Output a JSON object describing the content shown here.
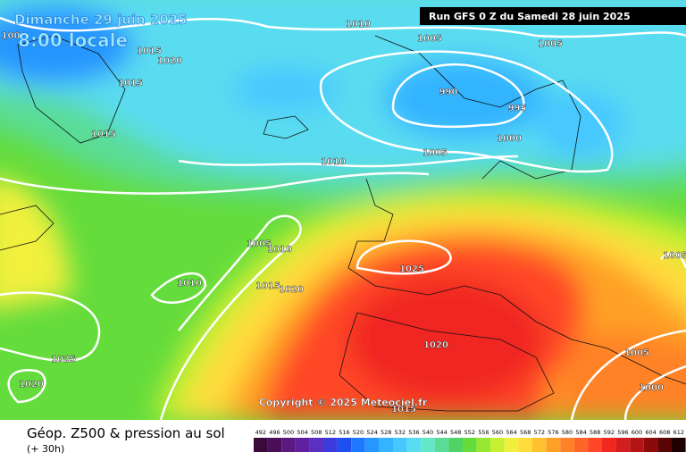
{
  "header": {
    "title": "Dimanche 29 juin 2025",
    "subtitle": "8:00 locale",
    "run": "Run GFS 0 Z du Samedi 28 juin 2025"
  },
  "copyright": "Copyright © 2025 Meteociel.fr",
  "isobars": {
    "labels": [
      "100",
      "1010",
      "1005",
      "1005",
      "1015",
      "1020",
      "1015",
      "990",
      "995",
      "1000",
      "1015",
      "1010",
      "1005",
      "1005",
      "1010",
      "1025",
      "1010",
      "1015",
      "1020",
      "1005",
      "1020",
      "1025",
      "1020",
      "1005",
      "1000",
      "1015"
    ]
  },
  "legend": {
    "title": "Géop. Z500 & pression au sol",
    "lead": "(+ 30h)",
    "scale": [
      {
        "label": "492",
        "color": "#3a0a3a"
      },
      {
        "label": "496",
        "color": "#4b0f5a"
      },
      {
        "label": "500",
        "color": "#5a1a80"
      },
      {
        "label": "504",
        "color": "#6020a0"
      },
      {
        "label": "508",
        "color": "#5a30c0"
      },
      {
        "label": "512",
        "color": "#3c3cdc"
      },
      {
        "label": "516",
        "color": "#1e50f0"
      },
      {
        "label": "520",
        "color": "#1e78ff"
      },
      {
        "label": "524",
        "color": "#2896ff"
      },
      {
        "label": "528",
        "color": "#32b4ff"
      },
      {
        "label": "532",
        "color": "#46c8ff"
      },
      {
        "label": "536",
        "color": "#5adcf0"
      },
      {
        "label": "540",
        "color": "#64e6c8"
      },
      {
        "label": "544",
        "color": "#5adc96"
      },
      {
        "label": "548",
        "color": "#50d264"
      },
      {
        "label": "552",
        "color": "#64dc3c"
      },
      {
        "label": "556",
        "color": "#96e632"
      },
      {
        "label": "560",
        "color": "#c8f032"
      },
      {
        "label": "564",
        "color": "#f0f03c"
      },
      {
        "label": "568",
        "color": "#ffdc3c"
      },
      {
        "label": "572",
        "color": "#ffc032"
      },
      {
        "label": "576",
        "color": "#ffa028"
      },
      {
        "label": "580",
        "color": "#ff8228"
      },
      {
        "label": "584",
        "color": "#ff6428"
      },
      {
        "label": "588",
        "color": "#ff4628"
      },
      {
        "label": "592",
        "color": "#f02820"
      },
      {
        "label": "596",
        "color": "#d21e1e"
      },
      {
        "label": "600",
        "color": "#b41414"
      },
      {
        "label": "604",
        "color": "#8c0a0a"
      },
      {
        "label": "608",
        "color": "#5a0505"
      },
      {
        "label": "612",
        "color": "#1e0000"
      }
    ]
  }
}
